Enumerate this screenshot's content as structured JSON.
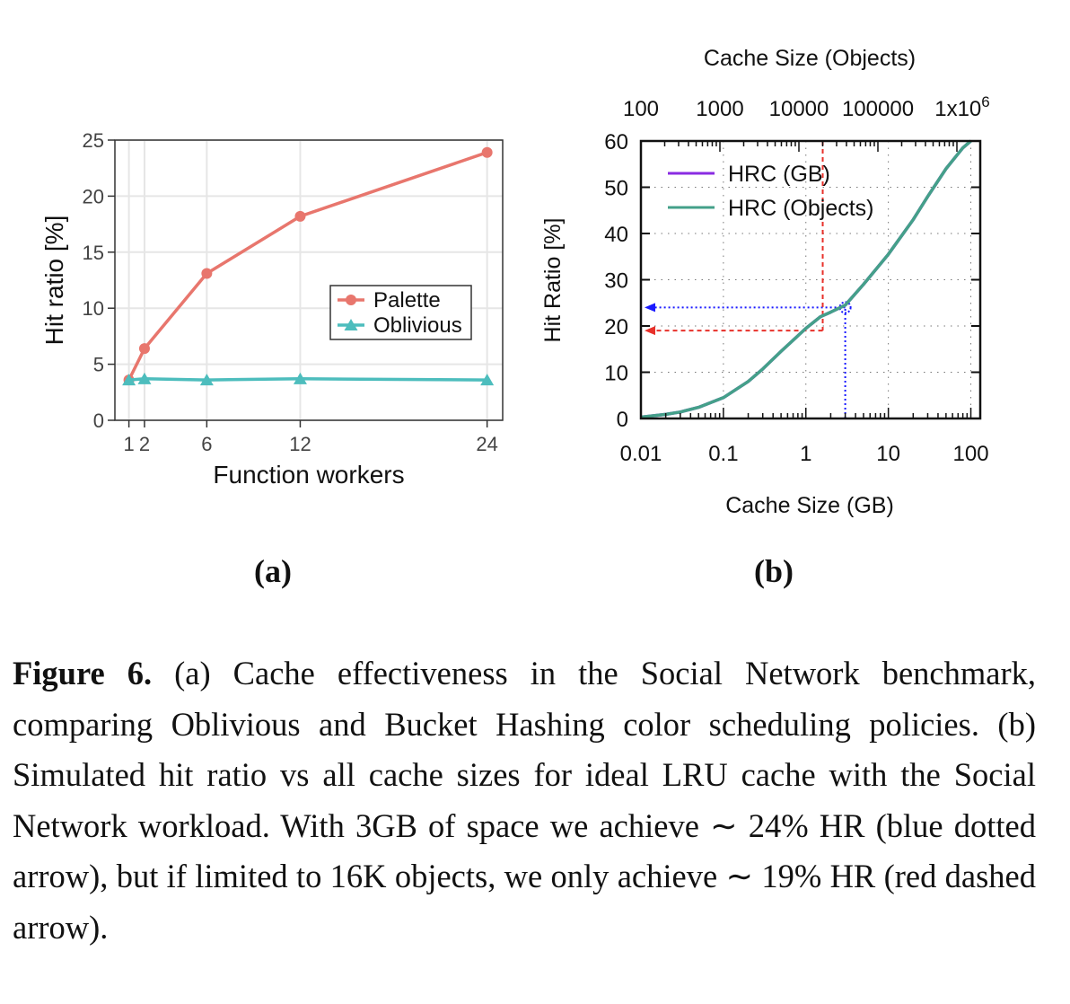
{
  "chart_data": [
    {
      "id": "a",
      "type": "line",
      "panel_label": "(a)",
      "xlabel": "Function workers",
      "ylabel": "Hit ratio [%]",
      "x_ticks": [
        1,
        2,
        6,
        12,
        24
      ],
      "x_tick_labels": [
        "1",
        "2",
        "6",
        "12",
        "24"
      ],
      "y_ticks": [
        0,
        5,
        10,
        15,
        20,
        25
      ],
      "y_tick_labels": [
        "0",
        "5",
        "10",
        "15",
        "20",
        "25"
      ],
      "xlim": [
        0.1,
        25
      ],
      "ylim": [
        0,
        25
      ],
      "grid": true,
      "legend_position": "center-right",
      "series": [
        {
          "name": "Palette",
          "color": "#e8766d",
          "marker": "circle",
          "x": [
            1,
            2,
            6,
            12,
            24
          ],
          "y": [
            3.6,
            6.4,
            13.1,
            18.2,
            23.9
          ]
        },
        {
          "name": "Oblivious",
          "color": "#4dbdbd",
          "marker": "triangle",
          "x": [
            1,
            2,
            6,
            12,
            24
          ],
          "y": [
            3.6,
            3.7,
            3.6,
            3.7,
            3.6
          ]
        }
      ]
    },
    {
      "id": "b",
      "type": "line",
      "panel_label": "(b)",
      "xlabel": "Cache Size (GB)",
      "x2label": "Cache Size (Objects)",
      "ylabel": "Hit Ratio [%]",
      "x_scale": "log",
      "x2_scale": "log",
      "xlim": [
        0.01,
        130
      ],
      "x2lim": [
        100,
        1000000
      ],
      "ylim": [
        0,
        60
      ],
      "x_ticks": [
        0.01,
        0.1,
        1,
        10,
        100
      ],
      "x_tick_labels": [
        "0.01",
        "0.1",
        "1",
        "10",
        "100"
      ],
      "x2_ticks": [
        100,
        1000,
        10000,
        100000,
        1000000
      ],
      "x2_tick_labels": [
        "100",
        "1000",
        "10000",
        "100000",
        "1x10"
      ],
      "x2_last_tick_superscript": "6",
      "y_ticks": [
        0,
        10,
        20,
        30,
        40,
        50,
        60
      ],
      "y_tick_labels": [
        "0",
        "10",
        "20",
        "30",
        "40",
        "50",
        "60"
      ],
      "grid": "dotted",
      "legend_position": "top-left",
      "series": [
        {
          "name": "HRC (GB)",
          "color": "#8a2be2",
          "x": [
            0.01,
            0.02,
            0.03,
            0.05,
            0.1,
            0.2,
            0.3,
            0.5,
            1,
            1.5,
            2,
            3,
            5,
            10,
            20,
            30,
            50,
            80,
            100
          ],
          "y": [
            0.3,
            0.9,
            1.4,
            2.4,
            4.5,
            8.0,
            10.7,
            14.5,
            19.5,
            22.0,
            23.0,
            24.5,
            29.0,
            35.5,
            43.0,
            48.0,
            54.0,
            58.5,
            60.0
          ]
        },
        {
          "name": "HRC (Objects)",
          "color": "#44a089",
          "x": [
            0.01,
            0.02,
            0.03,
            0.05,
            0.1,
            0.2,
            0.3,
            0.5,
            1,
            1.5,
            2,
            3,
            5,
            10,
            20,
            30,
            50,
            80,
            100
          ],
          "y": [
            0.3,
            0.9,
            1.4,
            2.4,
            4.5,
            8.0,
            10.7,
            14.5,
            19.5,
            22.0,
            23.0,
            24.5,
            29.0,
            35.5,
            43.0,
            48.0,
            54.0,
            58.5,
            60.0
          ]
        }
      ],
      "annotations": [
        {
          "kind": "blue-dotted-arrow",
          "color": "#1a1aff",
          "x_gb": 3,
          "y": 24
        },
        {
          "kind": "red-dashed-arrow",
          "color": "#e8302a",
          "x_gb": 1.6,
          "y": 19
        }
      ]
    }
  ],
  "caption": {
    "label": "Figure 6.",
    "text": " (a) Cache effectiveness in the Social Network benchmark, comparing Oblivious and Bucket Hashing color scheduling policies. (b) Simulated hit ratio vs all cache sizes for ideal LRU cache with the Social Network workload. With 3GB of space we achieve ∼ 24% HR (blue dotted arrow), but if limited to 16K objects, we only achieve ∼ 19% HR (red dashed arrow)."
  }
}
